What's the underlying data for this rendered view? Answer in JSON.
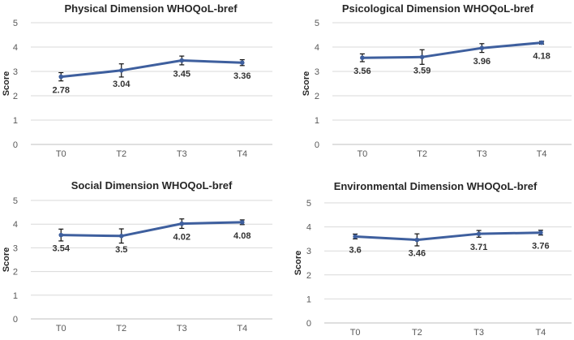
{
  "chart_data": [
    {
      "type": "line",
      "title": "Physical Dimension WHOQoL-bref",
      "xlabel": "",
      "ylabel": "Score",
      "ylim": [
        0,
        5
      ],
      "yticks": [
        "0",
        "1",
        "2",
        "3",
        "4",
        "5"
      ],
      "grid": true,
      "categories": [
        "T0",
        "T2",
        "T3",
        "T4"
      ],
      "series": [
        {
          "name": "Physical",
          "values": [
            2.78,
            3.04,
            3.45,
            3.36
          ],
          "error": [
            0.17,
            0.27,
            0.18,
            0.12
          ],
          "labels": [
            "2.78",
            "3.04",
            "3.45",
            "3.36"
          ]
        }
      ]
    },
    {
      "type": "line",
      "title": "Psicological Dimension WHOQoL-bref",
      "xlabel": "",
      "ylabel": "Score",
      "ylim": [
        0,
        5
      ],
      "yticks": [
        "0",
        "1",
        "2",
        "3",
        "4",
        "5"
      ],
      "grid": true,
      "categories": [
        "T0",
        "T2",
        "T3",
        "T4"
      ],
      "series": [
        {
          "name": "Psicological",
          "values": [
            3.56,
            3.59,
            3.96,
            4.18
          ],
          "error": [
            0.16,
            0.3,
            0.18,
            0.06
          ],
          "labels": [
            "3.56",
            "3.59",
            "3.96",
            "4.18"
          ]
        }
      ]
    },
    {
      "type": "line",
      "title": "Social Dimension WHOQoL-bref",
      "xlabel": "",
      "ylabel": "Score",
      "ylim": [
        0,
        5
      ],
      "yticks": [
        "0",
        "1",
        "2",
        "3",
        "4",
        "5"
      ],
      "grid": true,
      "categories": [
        "T0",
        "T2",
        "T3",
        "T4"
      ],
      "series": [
        {
          "name": "Social",
          "values": [
            3.54,
            3.5,
            4.02,
            4.08
          ],
          "error": [
            0.25,
            0.3,
            0.2,
            0.1
          ],
          "labels": [
            "3.54",
            "3.5",
            "4.02",
            "4.08"
          ]
        }
      ]
    },
    {
      "type": "line",
      "title": "Environmental Dimension WHOQoL-bref",
      "xlabel": "",
      "ylabel": "Score",
      "ylim": [
        0,
        5
      ],
      "yticks": [
        "0",
        "1",
        "2",
        "3",
        "4",
        "5"
      ],
      "grid": true,
      "categories": [
        "T0",
        "T2",
        "T3",
        "T4"
      ],
      "series": [
        {
          "name": "Environmental",
          "values": [
            3.6,
            3.46,
            3.71,
            3.76
          ],
          "error": [
            0.1,
            0.25,
            0.14,
            0.1
          ],
          "labels": [
            "3.6",
            "3.46",
            "3.71",
            "3.76"
          ]
        }
      ]
    }
  ],
  "style": {
    "line_color": "#3e5f9e",
    "error_bar_color": "#111111",
    "grid_color": "#d9d9d9",
    "axis_color": "#bfbfbf",
    "text_color": "#595959",
    "title_color": "#262626",
    "label_color": "#333333"
  }
}
